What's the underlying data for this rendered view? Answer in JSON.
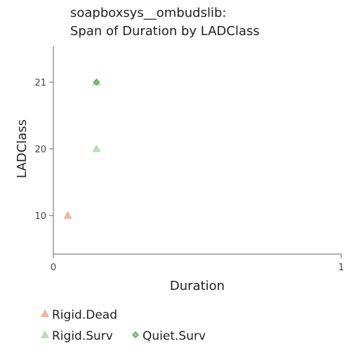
{
  "chart_data": {
    "type": "scatter",
    "title_lines": [
      "soapboxsys__ombudslib:",
      "Span of Duration by LADClass"
    ],
    "xlabel": "Duration",
    "ylabel": "LADClass",
    "x_ticks": [
      {
        "value": 0,
        "label": "0"
      },
      {
        "value": 1,
        "label": "1"
      }
    ],
    "y_ticks": [
      {
        "value": 10,
        "label": "10"
      },
      {
        "value": 20,
        "label": "20"
      },
      {
        "value": 21,
        "label": "21"
      }
    ],
    "series": [
      {
        "name": "Rigid.Dead",
        "marker": "triangle",
        "color": "#f4a582",
        "points": [
          {
            "x": 0.05,
            "y": 10
          }
        ]
      },
      {
        "name": "Rigid.Surv",
        "marker": "triangle",
        "color": "#a6dba0",
        "points": [
          {
            "x": 0.15,
            "y": 20
          },
          {
            "x": 0.15,
            "y": 21
          }
        ]
      },
      {
        "name": "Quiet.Surv",
        "marker": "diamond",
        "color": "#5aae61",
        "points": [
          {
            "x": 0.15,
            "y": 21
          }
        ]
      }
    ],
    "grid": false,
    "legend_placement": "bottom"
  }
}
